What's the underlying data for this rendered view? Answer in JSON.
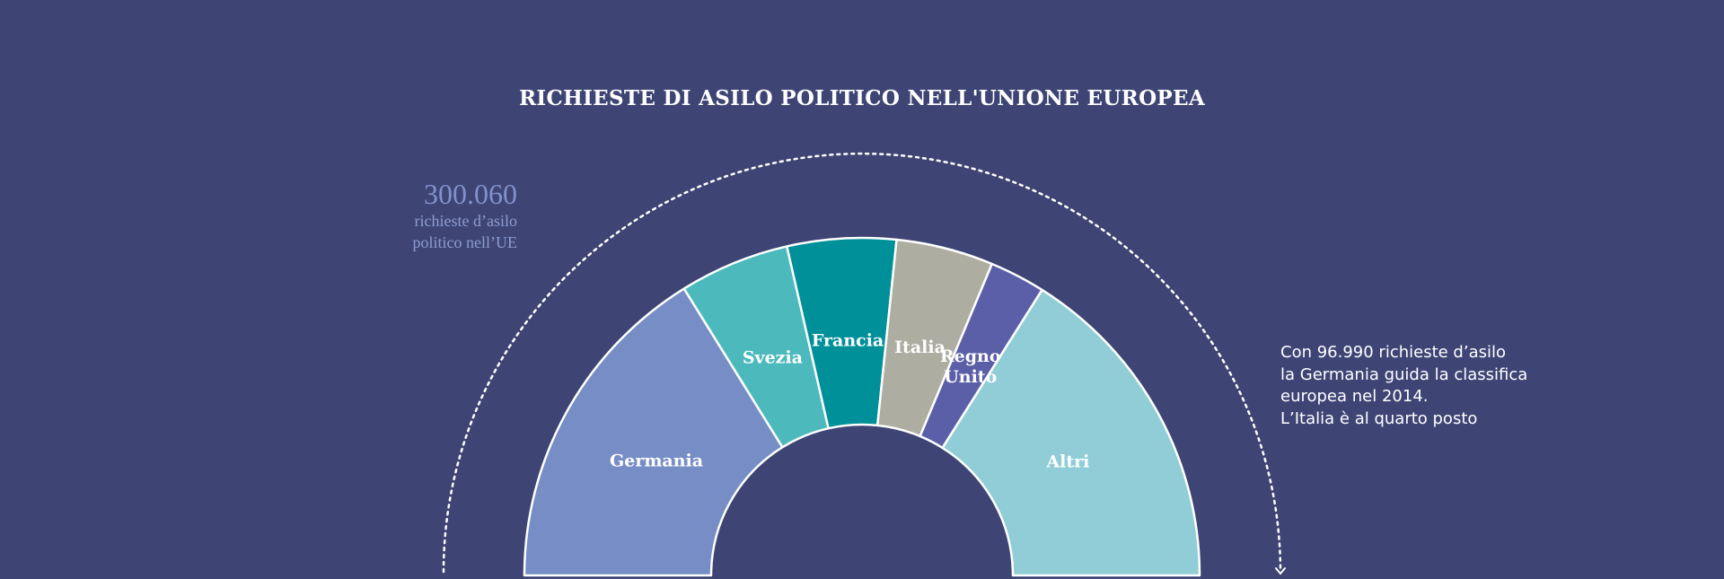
{
  "title": "RICHIESTE DI ASILO POLITICO NELL'UNIONE EUROPEA",
  "total": {
    "value": "300.060",
    "description": "richieste d’asilo politico nell’UE"
  },
  "note": {
    "lines": [
      "Con 96.990 richieste d’asilo",
      "la Germania guida la classifica",
      "europea nel 2014.",
      "L’Italia è al quarto posto"
    ]
  },
  "colors": {
    "background": "#3e4575",
    "text": "#ffffff",
    "accent": "#8291cc"
  },
  "chart_data": {
    "type": "pie",
    "variant": "half-donut",
    "title": "RICHIESTE DI ASILO POLITICO NELL'UNIONE EUROPEA",
    "unit": "richieste d'asilo",
    "total": 300060,
    "slices": [
      {
        "label": "Germania",
        "value": 96990,
        "color": "#768dc6"
      },
      {
        "label": "Svezia",
        "value": 31600,
        "color": "#4cbabd"
      },
      {
        "label": "Francia",
        "value": 31250,
        "color": "#00909a"
      },
      {
        "label": "Italia",
        "value": 27930,
        "color": "#aeada2"
      },
      {
        "label": "Regno Unito",
        "value": 16000,
        "color": "#5b5fa8"
      },
      {
        "label": "Altri",
        "value": 96290,
        "color": "#90cdd6"
      }
    ]
  }
}
